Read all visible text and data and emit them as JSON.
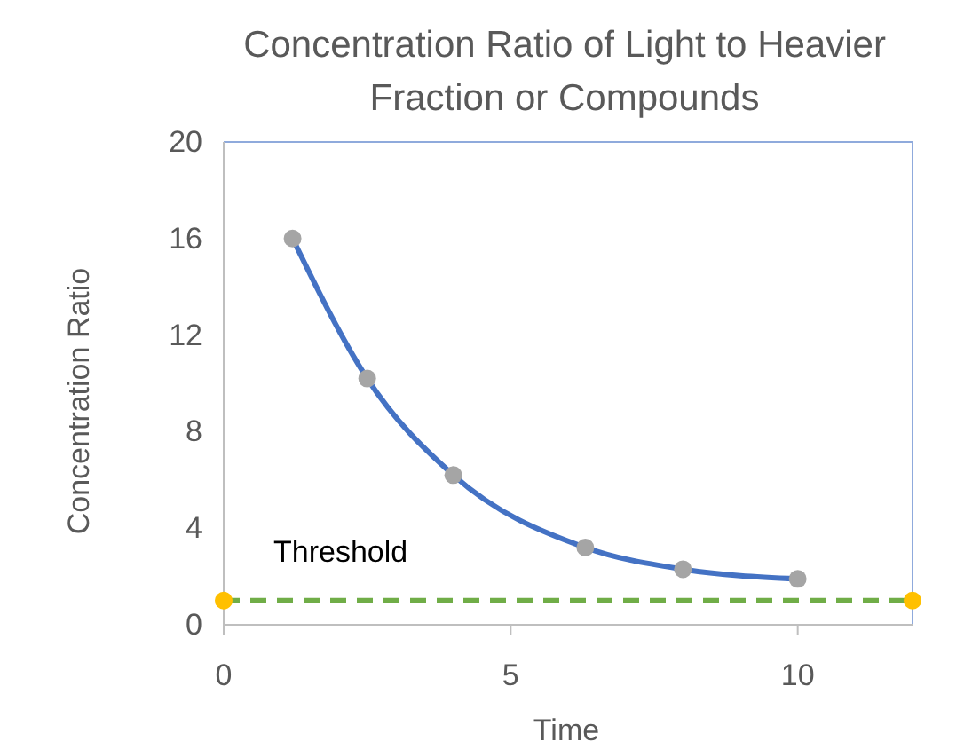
{
  "chart_data": {
    "type": "line",
    "title": "Concentration Ratio of Light to Heavier Fraction or Compounds",
    "xlabel": "Time",
    "ylabel": "Concentration Ratio",
    "xlim": [
      0,
      12
    ],
    "xticks": [
      0,
      5,
      10
    ],
    "ylim": [
      0,
      20
    ],
    "yticks": [
      0,
      4,
      8,
      12,
      16,
      20
    ],
    "grid": false,
    "marker": "circle",
    "series": [
      {
        "x": [
          1.2,
          2.5,
          4,
          6.3,
          8,
          10
        ],
        "values": [
          16,
          10.2,
          6.2,
          3.2,
          2.3,
          1.9
        ],
        "color": "#4472c4",
        "line_style": "solid",
        "marker": "none"
      },
      {
        "type": "scatter",
        "x": [
          1.2,
          2.5,
          4,
          6.3,
          8,
          10
        ],
        "values": [
          16,
          10.2,
          6.2,
          3.2,
          2.3,
          1.9
        ],
        "color": "#a5a5a5"
      },
      {
        "name": "Threshold",
        "x": [
          0,
          12
        ],
        "values": [
          1,
          1
        ],
        "color": "#70ad47",
        "line_style": "dashed",
        "marker": "none"
      },
      {
        "type": "scatter",
        "x": [
          0,
          12
        ],
        "values": [
          1,
          1
        ],
        "color": "#ffc000"
      }
    ]
  }
}
